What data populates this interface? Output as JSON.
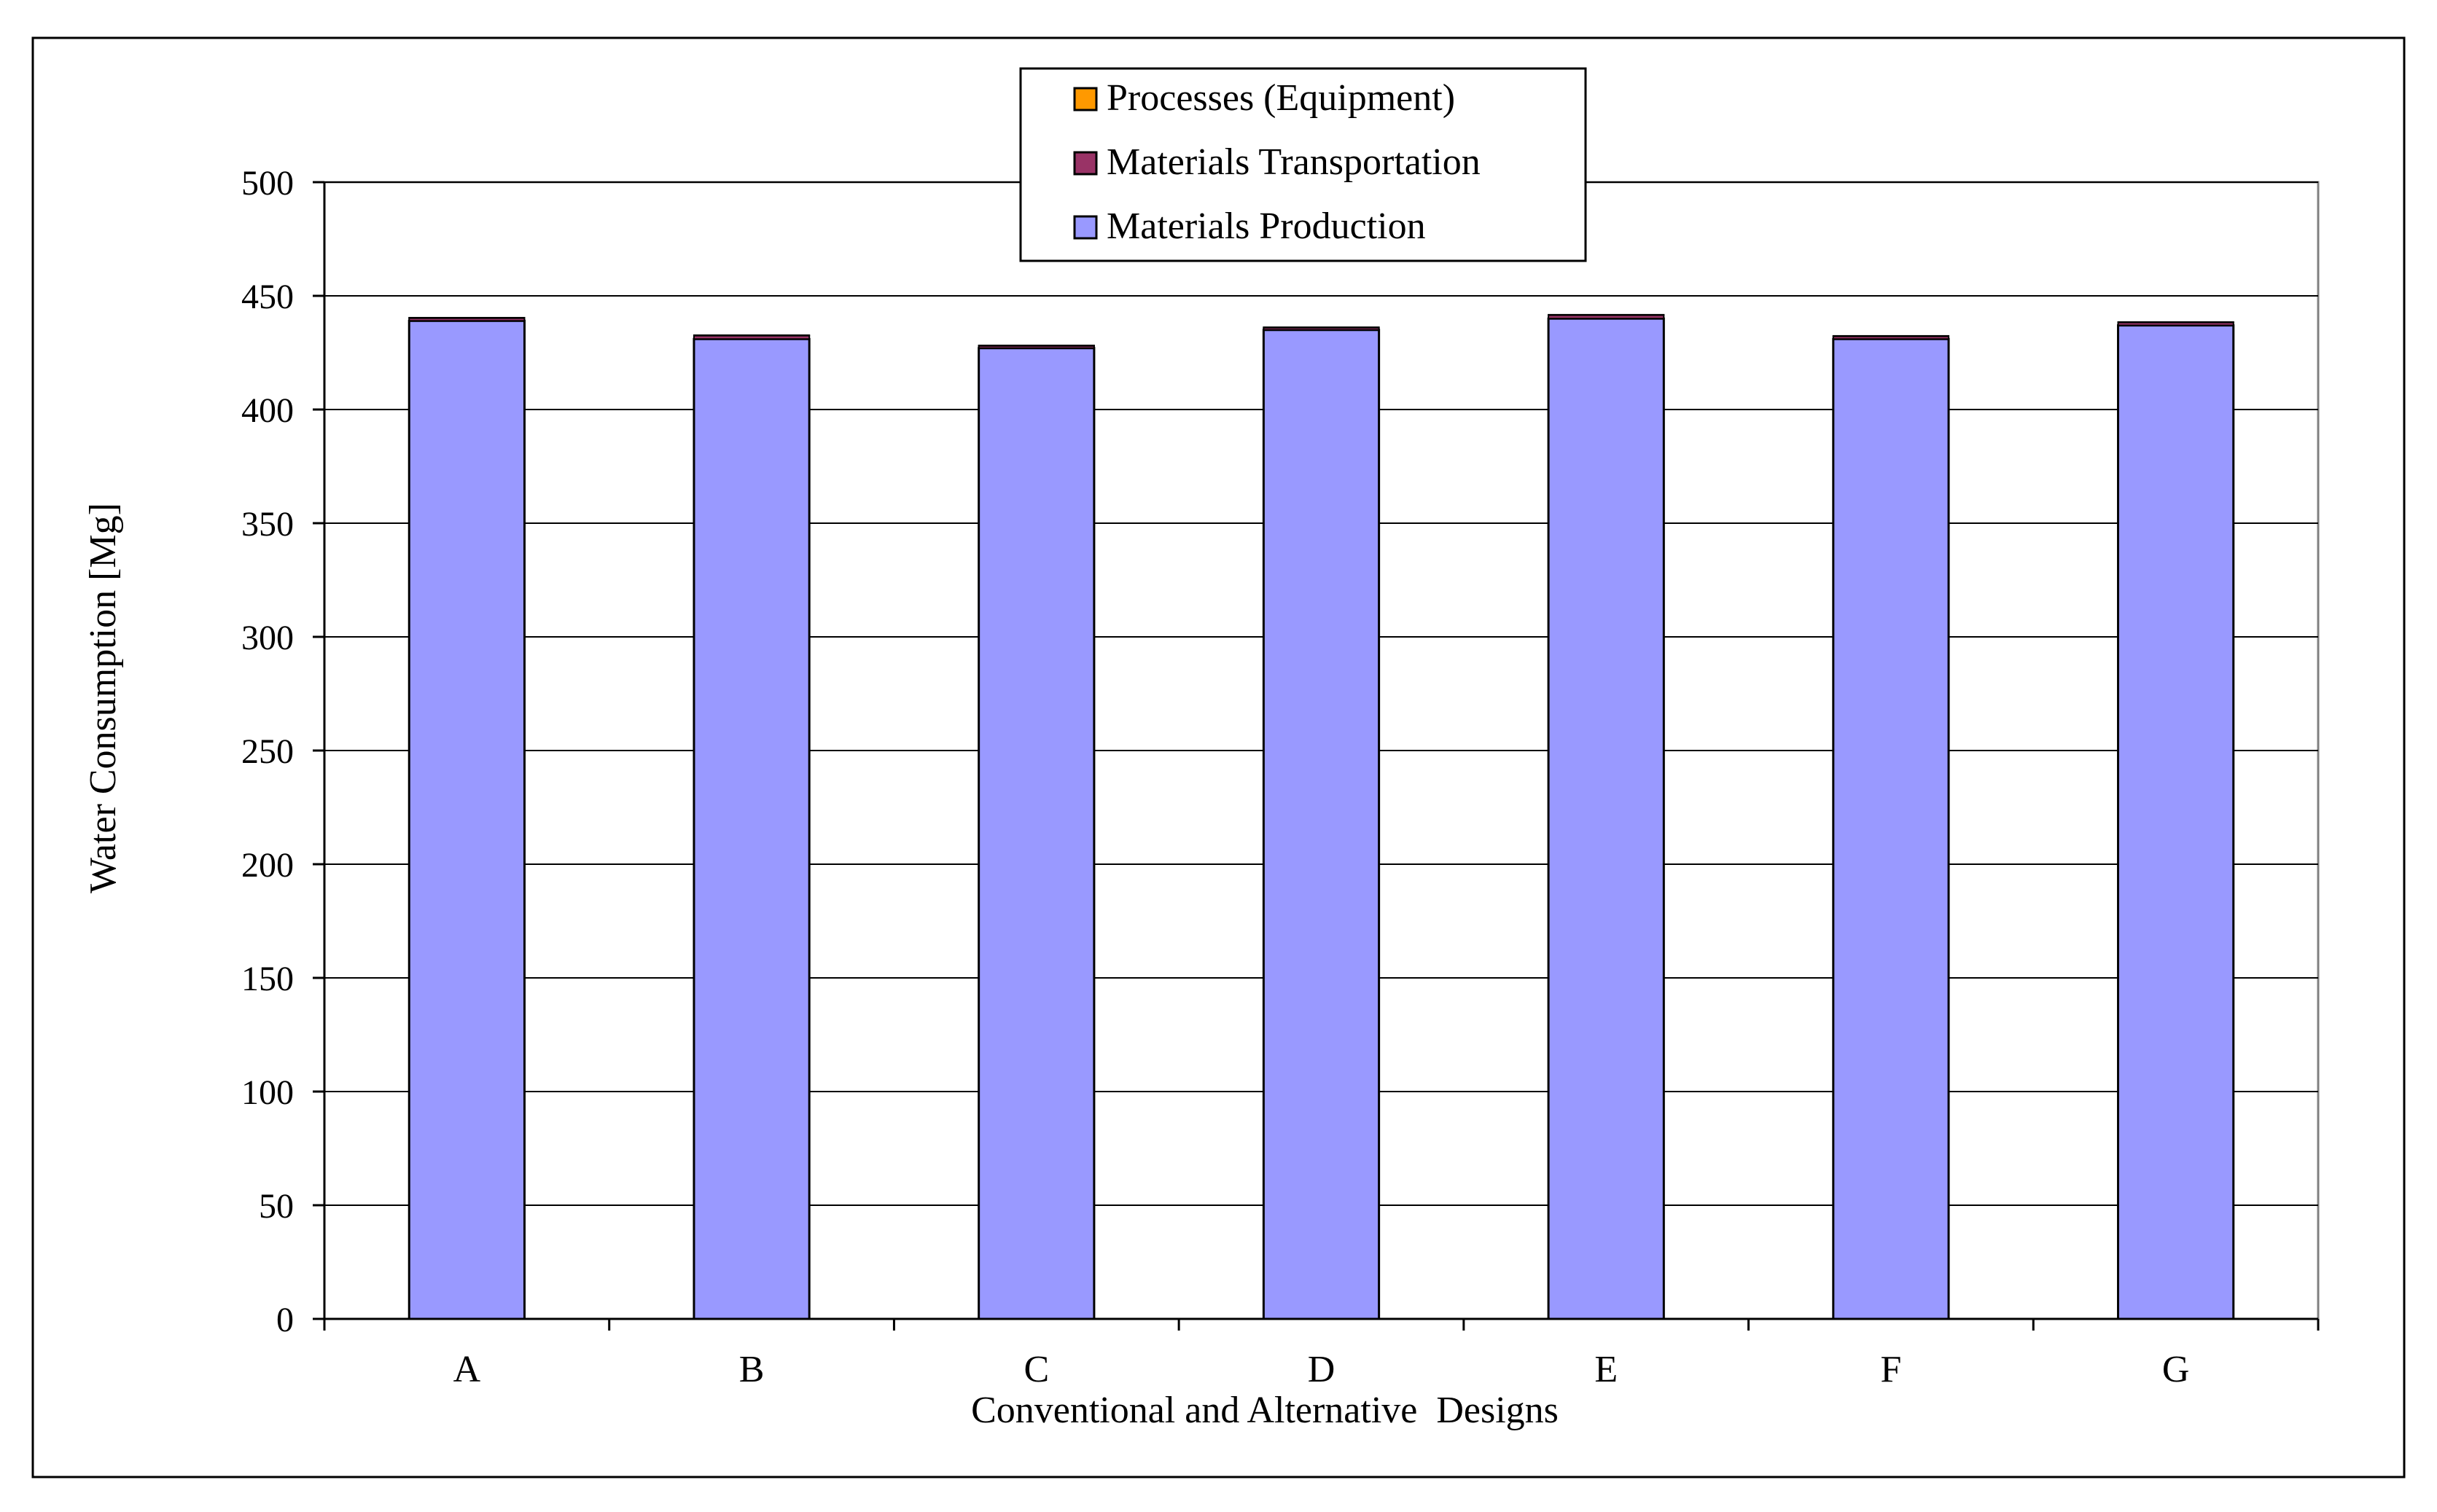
{
  "chart_data": {
    "type": "bar",
    "stacked": true,
    "title": "",
    "xlabel": "Conventional and Alternative  Designs",
    "ylabel": "Water Consumption [Mg]",
    "ylim": [
      0,
      500
    ],
    "yticks": [
      0,
      50,
      100,
      150,
      200,
      250,
      300,
      350,
      400,
      450,
      500
    ],
    "grid": true,
    "legend_position": "top-center",
    "categories": [
      "A",
      "B",
      "C",
      "D",
      "E",
      "F",
      "G"
    ],
    "series": [
      {
        "name": "Materials Production",
        "color": "#9999FF",
        "values": [
          439,
          431,
          427,
          435,
          440,
          431,
          437
        ]
      },
      {
        "name": "Materials Transportation",
        "color": "#993366",
        "values": [
          1.2,
          1.5,
          1.0,
          1.0,
          1.5,
          1.2,
          1.3
        ]
      },
      {
        "name": "Processes (Equipment)",
        "color": "#FF9900",
        "values": [
          0.2,
          0.2,
          0.2,
          0.2,
          0.2,
          0.2,
          0.2
        ]
      }
    ]
  }
}
